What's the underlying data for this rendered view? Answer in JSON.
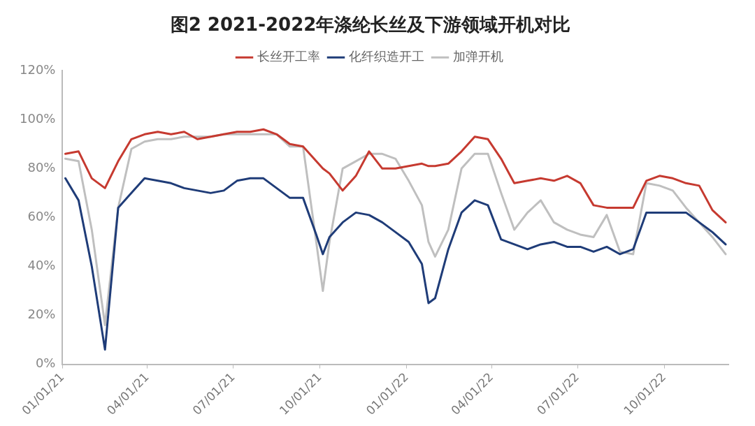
{
  "chart_data": {
    "type": "line",
    "title": "图2 2021-2022年涤纶长丝及下游领域开机对比",
    "x": [
      "2021-01-04",
      "2021-01-18",
      "2021-02-01",
      "2021-02-15",
      "2021-03-01",
      "2021-03-15",
      "2021-03-29",
      "2021-04-12",
      "2021-04-26",
      "2021-05-10",
      "2021-05-24",
      "2021-06-07",
      "2021-06-21",
      "2021-07-05",
      "2021-07-19",
      "2021-08-02",
      "2021-08-16",
      "2021-08-30",
      "2021-09-13",
      "2021-09-27",
      "2021-10-04",
      "2021-10-11",
      "2021-10-25",
      "2021-11-08",
      "2021-11-22",
      "2021-12-06",
      "2021-12-20",
      "2022-01-03",
      "2022-01-17",
      "2022-01-24",
      "2022-01-31",
      "2022-02-14",
      "2022-02-28",
      "2022-03-14",
      "2022-03-28",
      "2022-04-11",
      "2022-04-25",
      "2022-05-09",
      "2022-05-23",
      "2022-06-06",
      "2022-06-20",
      "2022-07-04",
      "2022-07-18",
      "2022-08-01",
      "2022-08-15",
      "2022-08-29",
      "2022-09-12",
      "2022-09-26",
      "2022-10-10",
      "2022-10-24",
      "2022-11-07",
      "2022-11-21",
      "2022-12-05"
    ],
    "series": [
      {
        "name": "长丝开工率",
        "color": "#c63a30",
        "values": [
          86,
          87,
          76,
          72,
          83,
          92,
          94,
          95,
          94,
          95,
          92,
          93,
          94,
          95,
          95,
          96,
          94,
          90,
          89,
          83,
          80,
          78,
          71,
          77,
          87,
          80,
          80,
          81,
          82,
          81,
          81,
          82,
          87,
          93,
          92,
          84,
          74,
          75,
          76,
          75,
          77,
          74,
          65,
          64,
          64,
          64,
          75,
          77,
          76,
          74,
          73,
          63,
          58
        ]
      },
      {
        "name": "化纤织造开工",
        "color": "#1f3c78",
        "values": [
          76,
          67,
          40,
          6,
          64,
          70,
          76,
          75,
          74,
          72,
          71,
          70,
          71,
          75,
          76,
          76,
          72,
          68,
          68,
          53,
          45,
          52,
          58,
          62,
          61,
          58,
          54,
          50,
          41,
          25,
          27,
          47,
          62,
          67,
          65,
          51,
          49,
          47,
          49,
          50,
          48,
          48,
          46,
          48,
          45,
          47,
          62,
          62,
          62,
          62,
          58,
          54,
          49
        ]
      },
      {
        "name": "加弹开机",
        "color": "#bfbfbf",
        "values": [
          84,
          83,
          55,
          16,
          64,
          88,
          91,
          92,
          92,
          93,
          93,
          93,
          94,
          94,
          94,
          94,
          94,
          89,
          89,
          50,
          30,
          50,
          80,
          83,
          86,
          86,
          84,
          75,
          65,
          50,
          44,
          55,
          80,
          86,
          86,
          70,
          55,
          62,
          67,
          58,
          55,
          53,
          52,
          61,
          46,
          45,
          74,
          73,
          71,
          64,
          58,
          52,
          45
        ]
      }
    ],
    "xlim": [
      "2021-01-01",
      "2022-12-08"
    ],
    "xticks": [
      {
        "value": "2021-01-01",
        "label": "01/01/21"
      },
      {
        "value": "2021-04-01",
        "label": "04/01/21"
      },
      {
        "value": "2021-07-01",
        "label": "07/01/21"
      },
      {
        "value": "2021-10-01",
        "label": "10/01/21"
      },
      {
        "value": "2022-01-01",
        "label": "01/01/22"
      },
      {
        "value": "2022-04-01",
        "label": "04/01/22"
      },
      {
        "value": "2022-07-01",
        "label": "07/01/22"
      },
      {
        "value": "2022-10-01",
        "label": "10/01/22"
      }
    ],
    "ylim": [
      0,
      120
    ],
    "yticks": [
      {
        "value": 0,
        "label": "0%"
      },
      {
        "value": 20,
        "label": "20%"
      },
      {
        "value": 40,
        "label": "40%"
      },
      {
        "value": 60,
        "label": "60%"
      },
      {
        "value": 80,
        "label": "80%"
      },
      {
        "value": 100,
        "label": "100%"
      },
      {
        "value": 120,
        "label": "120%"
      }
    ],
    "legend": "top",
    "grid": false,
    "marker": "none",
    "line_style": "solid"
  }
}
